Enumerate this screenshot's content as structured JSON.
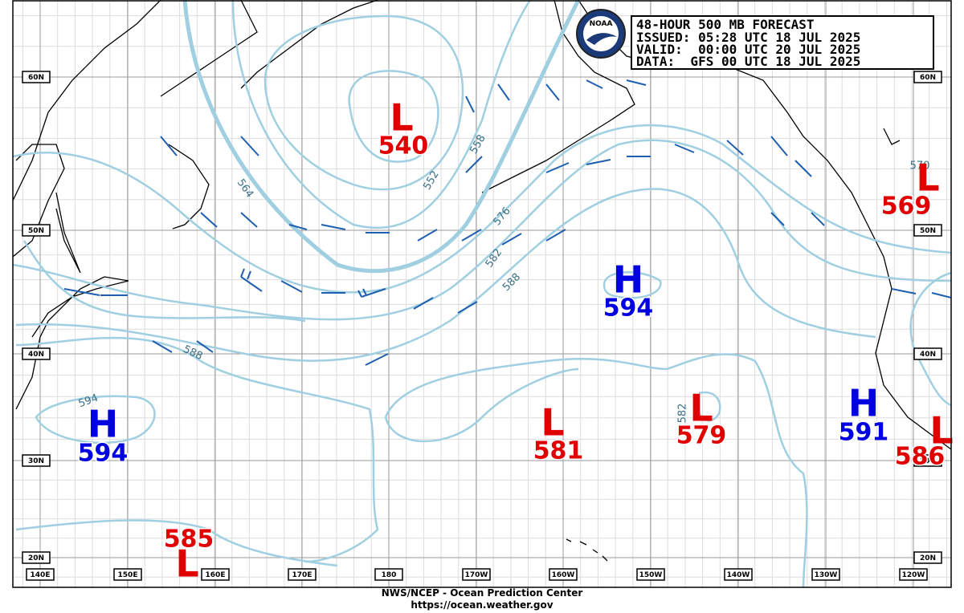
{
  "header": {
    "lines": [
      "48-HOUR 500 MB FORECAST",
      "ISSUED: 05:28 UTC 18 JUL 2025",
      "VALID:  00:00 UTC 20 JUL 2025",
      "DATA:  GFS 00 UTC 18 JUL 2025"
    ],
    "logo_text": "NOAA"
  },
  "pressure_centers": [
    {
      "letter": "L",
      "value": 540
    },
    {
      "letter": "L",
      "value": 569
    },
    {
      "letter": "H",
      "value": 594
    },
    {
      "letter": "H",
      "value": 594
    },
    {
      "letter": "L",
      "value": 581
    },
    {
      "letter": "L",
      "value": 579
    },
    {
      "letter": "H",
      "value": 591
    },
    {
      "letter": "L",
      "value": 586
    },
    {
      "letter": "L",
      "value": 585
    }
  ],
  "contour_labels": [
    564,
    552,
    558,
    576,
    582,
    588,
    588,
    594,
    570,
    582
  ],
  "latitude_labels": [
    "60N",
    "50N",
    "40N",
    "30N",
    "20N"
  ],
  "longitude_labels": [
    "140E",
    "150E",
    "160E",
    "170E",
    "180",
    "170W",
    "160W",
    "150W",
    "140W",
    "130W",
    "120W"
  ],
  "footer": {
    "lines": [
      "NWS/NCEP - Ocean Prediction Center",
      "https://ocean.weather.gov"
    ]
  }
}
